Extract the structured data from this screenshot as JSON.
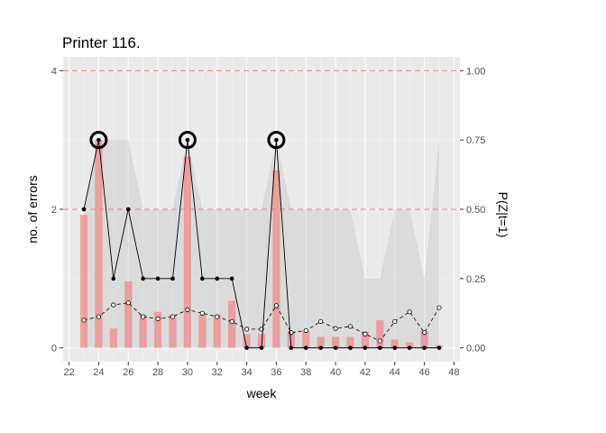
{
  "chart_data": {
    "type": "bar+line",
    "title": "Printer 116.",
    "xlabel": "week",
    "ylabel": "no. of errors",
    "y2label": "P(Z|t=1)",
    "xlim": [
      21.6,
      48.4
    ],
    "ylim": [
      -0.2,
      4.2
    ],
    "y2lim": [
      -0.05,
      1.05
    ],
    "x_ticks": [
      22,
      24,
      26,
      28,
      30,
      32,
      34,
      36,
      38,
      40,
      42,
      44,
      46,
      48
    ],
    "y_ticks": [
      0,
      2,
      4
    ],
    "y2_ticks": [
      "0.00",
      "0.25",
      "0.50",
      "0.75",
      "1.00"
    ],
    "grid": true,
    "reference_lines_y": [
      2,
      4
    ],
    "weeks": [
      23,
      24,
      25,
      26,
      27,
      28,
      29,
      30,
      31,
      32,
      33,
      34,
      35,
      36,
      37,
      38,
      39,
      40,
      41,
      42,
      43,
      44,
      45,
      46,
      47
    ],
    "band_upper": [
      2,
      3,
      3,
      3,
      2,
      2,
      2,
      3,
      2,
      2,
      2,
      2,
      2,
      3,
      2,
      2,
      2,
      2,
      2,
      1,
      1,
      2,
      2,
      1,
      3
    ],
    "probability_bars": [
      0.48,
      0.75,
      0.07,
      0.24,
      0.12,
      0.13,
      0.12,
      0.69,
      0.12,
      0.12,
      0.17,
      0.05,
      0.05,
      0.64,
      0.06,
      0.06,
      0.04,
      0.04,
      0.04,
      0.06,
      0.1,
      0.03,
      0.02,
      0.06,
      0.01
    ],
    "series": [
      {
        "values": [
          2,
          3,
          1,
          2,
          1,
          1,
          1,
          3,
          1,
          1,
          1,
          0,
          0,
          3,
          0,
          0,
          0,
          0,
          0,
          0,
          0,
          0,
          0,
          0,
          0
        ]
      },
      {
        "values": [
          0.4,
          0.45,
          0.62,
          0.65,
          0.45,
          0.42,
          0.45,
          0.55,
          0.5,
          0.45,
          0.38,
          0.27,
          0.27,
          0.61,
          0.22,
          0.25,
          0.38,
          0.28,
          0.31,
          0.2,
          0.1,
          0.38,
          0.52,
          0.22,
          0.58
        ]
      }
    ],
    "highlighted_weeks": [
      24,
      30,
      36
    ]
  }
}
